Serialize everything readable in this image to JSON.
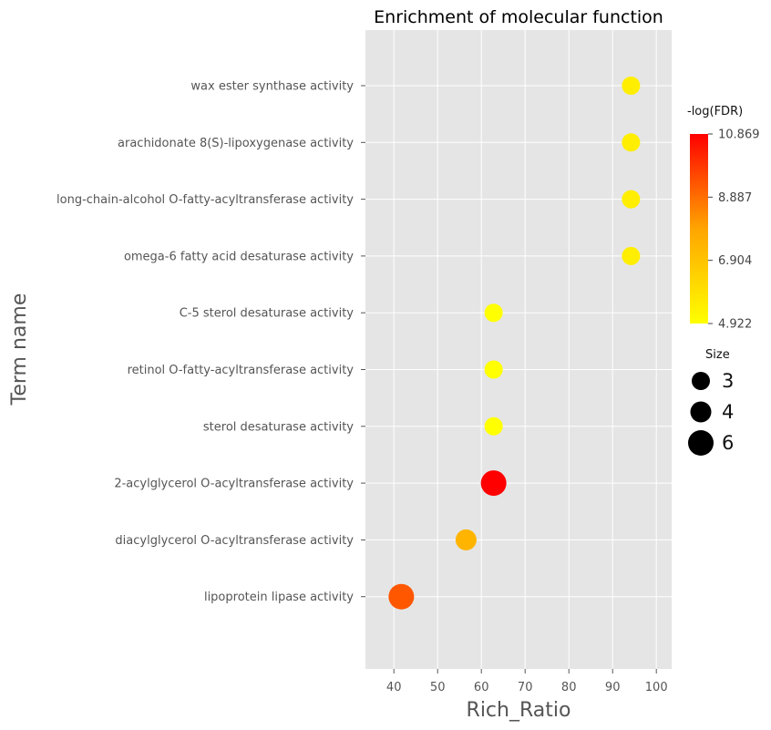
{
  "chart_data": {
    "type": "scatter",
    "title": "Enrichment of molecular function",
    "xlabel": "Rich_Ratio",
    "ylabel": "Term name",
    "xlim": [
      33.5,
      103.5
    ],
    "xticks": [
      "40",
      "50",
      "60",
      "70",
      "80",
      "90",
      "100"
    ],
    "grid": true,
    "terms": [
      "wax ester synthase activity",
      "arachidonate 8(S)-lipoxygenase activity",
      "long-chain-alcohol O-fatty-acyltransferase activity",
      "omega-6 fatty acid desaturase activity",
      "C-5 sterol desaturase activity",
      "retinol O-fatty-acyltransferase activity",
      "sterol desaturase activity",
      "2-acylglycerol O-acyltransferase activity",
      "diacylglycerol O-acyltransferase activity",
      "lipoprotein lipase activity"
    ],
    "points": [
      {
        "term": "wax ester synthase activity",
        "rich_ratio": 94.2,
        "neg_log_fdr": 5.5,
        "size": 3
      },
      {
        "term": "arachidonate 8(S)-lipoxygenase activity",
        "rich_ratio": 94.2,
        "neg_log_fdr": 5.5,
        "size": 3
      },
      {
        "term": "long-chain-alcohol O-fatty-acyltransferase activity",
        "rich_ratio": 94.2,
        "neg_log_fdr": 5.5,
        "size": 3
      },
      {
        "term": "omega-6 fatty acid desaturase activity",
        "rich_ratio": 94.2,
        "neg_log_fdr": 5.5,
        "size": 3
      },
      {
        "term": "C-5 sterol desaturase activity",
        "rich_ratio": 62.8,
        "neg_log_fdr": 4.922,
        "size": 3
      },
      {
        "term": "retinol O-fatty-acyltransferase activity",
        "rich_ratio": 62.8,
        "neg_log_fdr": 4.922,
        "size": 3
      },
      {
        "term": "sterol desaturase activity",
        "rich_ratio": 62.8,
        "neg_log_fdr": 4.922,
        "size": 3
      },
      {
        "term": "2-acylglycerol O-acyltransferase activity",
        "rich_ratio": 62.8,
        "neg_log_fdr": 10.869,
        "size": 6
      },
      {
        "term": "diacylglycerol O-acyltransferase activity",
        "rich_ratio": 56.5,
        "neg_log_fdr": 7.4,
        "size": 4
      },
      {
        "term": "lipoprotein lipase activity",
        "rich_ratio": 41.7,
        "neg_log_fdr": 9.3,
        "size": 6
      }
    ],
    "colorbar": {
      "title": "-log(FDR)",
      "min": 4.922,
      "max": 10.869,
      "tick_labels": [
        "10.869",
        "8.887",
        "6.904",
        "4.922"
      ],
      "color_low": "#ffff00",
      "color_mid": "#ffa500",
      "color_high": "#ff0000"
    },
    "size_legend": {
      "title": "Size",
      "entries": [
        "3",
        "4",
        "6"
      ]
    },
    "colors": {
      "panel": "#e5e5e5",
      "grid": "#ffffff",
      "size_legend_marker": "#000000"
    }
  }
}
